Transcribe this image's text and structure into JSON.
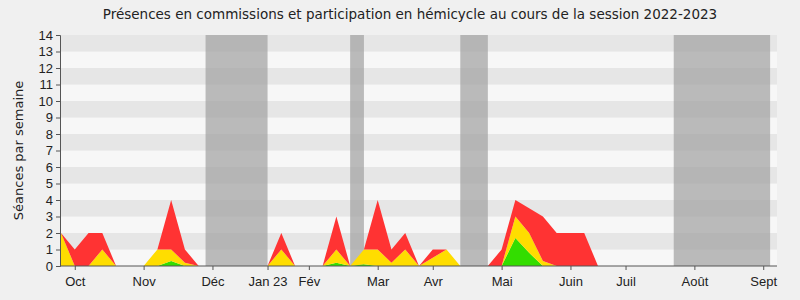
{
  "chart_data": {
    "type": "area",
    "stacked": true,
    "title": "Présences en commissions et participation en hémicycle au cours de la session 2022-2023",
    "y_label": "Séances par semaine",
    "categories": [
      null,
      "Oct",
      null,
      null,
      null,
      null,
      "Nov",
      null,
      null,
      null,
      null,
      "Déc",
      null,
      null,
      null,
      "Jan 23",
      null,
      null,
      "Fév",
      null,
      null,
      null,
      null,
      "Mar",
      null,
      null,
      null,
      "Avr",
      null,
      null,
      null,
      null,
      "Mai",
      null,
      null,
      null,
      null,
      "Juin",
      null,
      null,
      null,
      "Juil",
      null,
      null,
      null,
      null,
      "Août",
      null,
      null,
      null,
      null,
      "Sept",
      null
    ],
    "series": [
      {
        "color": "#33dd00",
        "values": [
          0,
          0,
          0,
          0,
          0,
          0,
          0,
          0,
          0.3,
          0,
          0,
          0,
          0,
          0,
          0,
          0,
          0,
          0,
          0,
          0,
          0.2,
          0,
          0.1,
          0,
          0,
          0,
          0,
          0,
          0,
          0,
          0,
          0,
          0,
          1.7,
          0.8,
          0,
          0,
          0,
          0,
          0,
          0,
          0,
          0,
          0,
          0,
          0,
          0,
          0,
          0,
          0,
          0,
          0,
          0
        ]
      },
      {
        "color": "#ffdd00",
        "values": [
          2,
          0,
          0,
          1,
          0,
          0,
          0,
          1,
          0.7,
          0.2,
          0,
          0,
          0,
          0,
          0,
          0,
          1,
          0,
          0,
          0,
          0.8,
          0,
          0.9,
          1,
          0.2,
          1,
          0,
          0.5,
          1,
          0,
          0,
          0,
          0,
          1.3,
          1.2,
          0.3,
          0,
          0,
          0,
          0,
          0,
          0,
          0,
          0,
          0,
          0,
          0,
          0,
          0,
          0,
          0,
          0,
          0
        ]
      },
      {
        "color": "#ff3333",
        "values": [
          0,
          1,
          2,
          1,
          0,
          0,
          0,
          0,
          3,
          0.8,
          0,
          0,
          0,
          0,
          0,
          0,
          1,
          0,
          0,
          0,
          2,
          0,
          0,
          3,
          0.8,
          1,
          0,
          0.5,
          0,
          0,
          0,
          0,
          1,
          1,
          1.5,
          2.7,
          2,
          2,
          2,
          0,
          0,
          0,
          0,
          0,
          0,
          0,
          0,
          0,
          0,
          0,
          0,
          0,
          0
        ]
      }
    ],
    "shaded_ranges": [
      [
        10.5,
        15
      ],
      [
        21,
        22
      ],
      [
        29,
        31
      ],
      [
        44.5,
        51.5
      ]
    ],
    "ylim": [
      0,
      14
    ],
    "yticks": [
      0,
      1,
      2,
      3,
      4,
      5,
      6,
      7,
      8,
      9,
      10,
      11,
      12,
      13,
      14
    ],
    "grid": true
  }
}
